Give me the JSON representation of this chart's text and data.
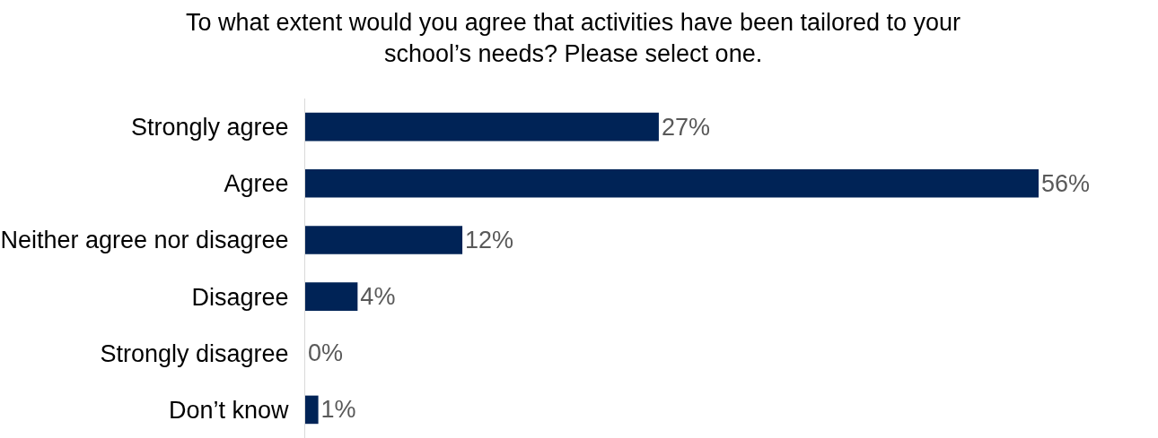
{
  "chart_data": {
    "type": "bar",
    "orientation": "horizontal",
    "title": "To what extent would you agree that activities have been tailored to your\nschool’s needs? Please select one.",
    "categories": [
      "Strongly agree",
      "Agree",
      "Neither agree nor disagree",
      "Disagree",
      "Strongly disagree",
      "Don’t know"
    ],
    "values": [
      27,
      56,
      12,
      4,
      0,
      1
    ],
    "value_labels": [
      "27%",
      "56%",
      "12%",
      "4%",
      "0%",
      "1%"
    ],
    "color": "#002356"
  }
}
